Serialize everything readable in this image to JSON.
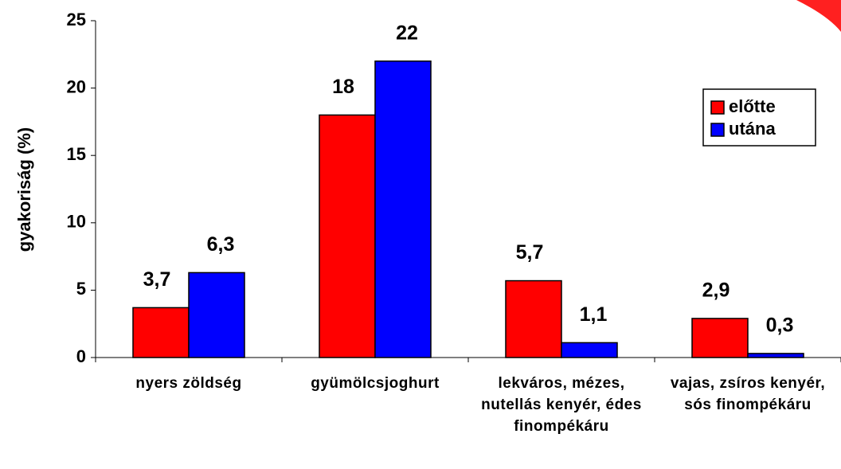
{
  "chart_data": {
    "type": "bar",
    "y_label": "gyakoriság (%)",
    "categories": [
      "nyers zöldség",
      "gyümölcsjoghurt",
      "lekváros, mézes, nutellás kenyér, édes finompékáru",
      "vajas, zsíros kenyér, sós finompékáru"
    ],
    "series": [
      {
        "name": "előtte",
        "color": "#ff0000",
        "values": [
          3.7,
          18,
          5.7,
          2.9
        ],
        "value_labels": [
          "3,7",
          "18",
          "5,7",
          "2,9"
        ]
      },
      {
        "name": "utána",
        "color": "#0000ff",
        "values": [
          6.3,
          22,
          1.1,
          0.3
        ],
        "value_labels": [
          "6,3",
          "22",
          "1,1",
          "0,3"
        ]
      }
    ],
    "ylim": [
      0,
      25
    ],
    "yticks": [
      0,
      5,
      10,
      15,
      20,
      25
    ],
    "legend": "upper right"
  }
}
